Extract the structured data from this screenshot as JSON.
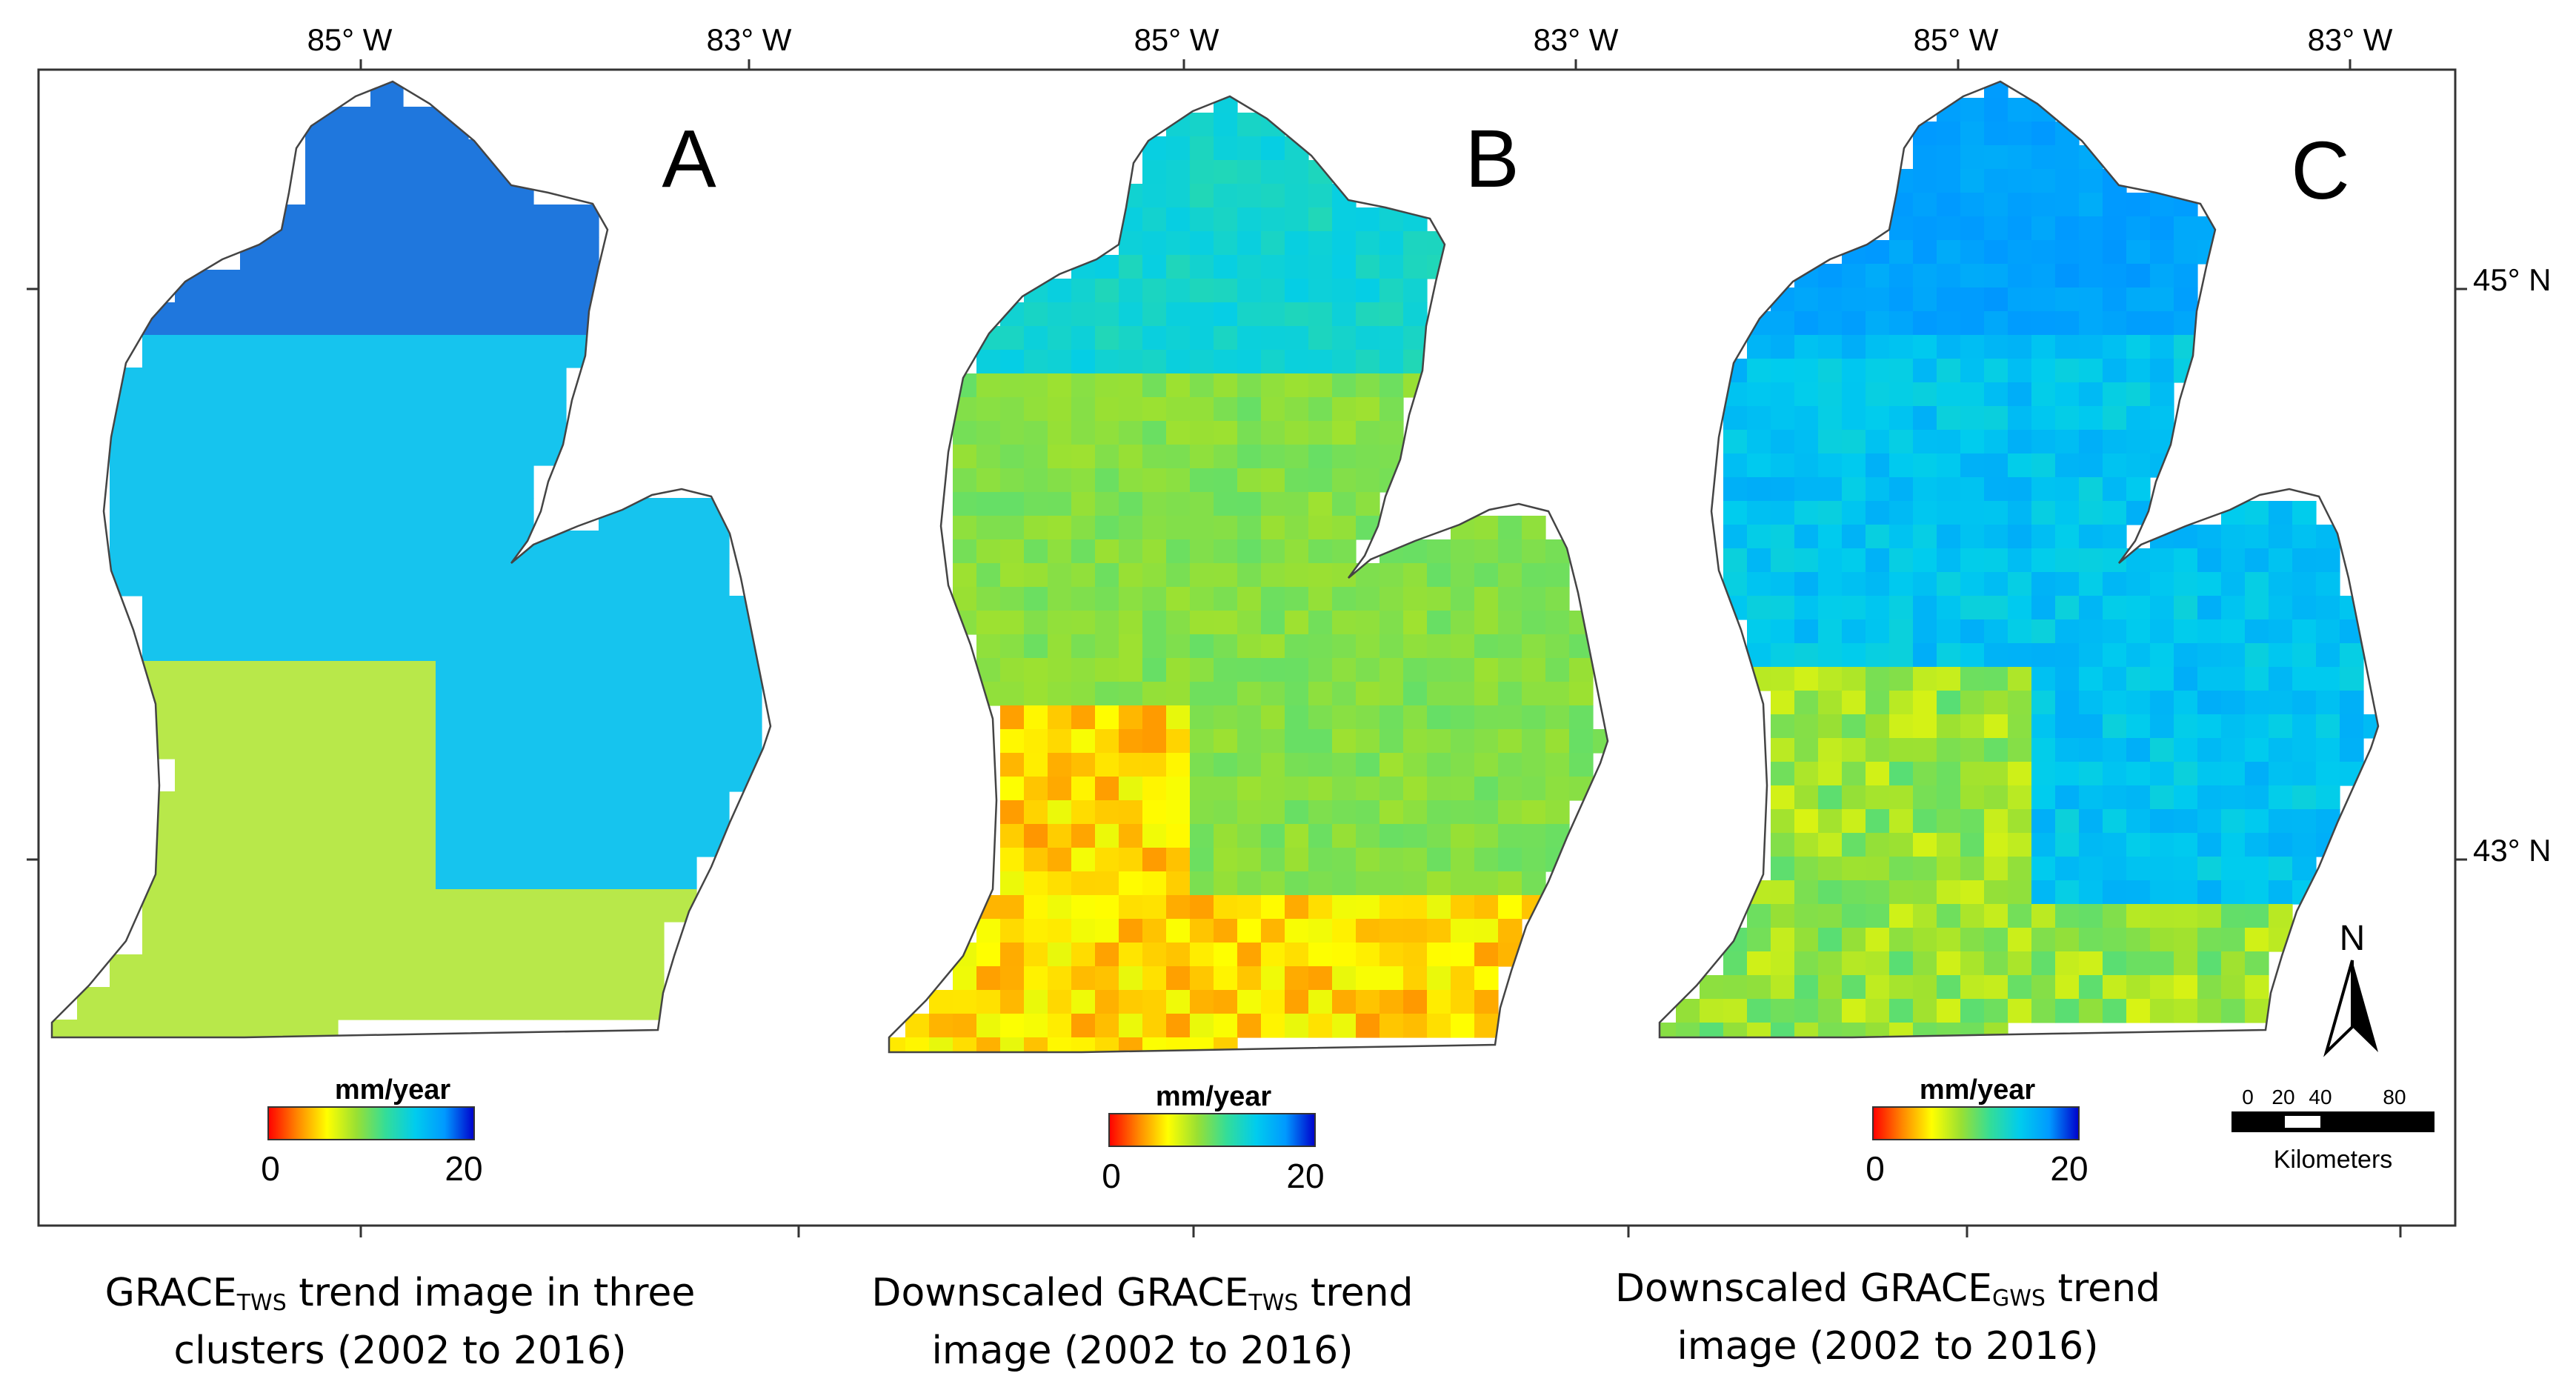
{
  "axes": {
    "top_ticks": [
      "85° W",
      "83° W",
      "85° W",
      "83° W",
      "85° W",
      "83° W"
    ],
    "right_ticks": [
      "45° N",
      "43° N"
    ]
  },
  "panels": [
    {
      "letter": "A",
      "legend_title": "mm/year",
      "legend_min": "0",
      "legend_max": "20",
      "style": "clusters"
    },
    {
      "letter": "B",
      "legend_title": "mm/year",
      "legend_min": "0",
      "legend_max": "20",
      "style": "downscaled"
    },
    {
      "letter": "C",
      "legend_title": "mm/year",
      "legend_min": "0",
      "legend_max": "20",
      "style": "gws"
    }
  ],
  "colorbar": {
    "stops": [
      "#ff0000",
      "#ff8800",
      "#ffff00",
      "#99e033",
      "#33dd99",
      "#00ccee",
      "#0099ff",
      "#0000cc"
    ],
    "range": [
      0,
      20
    ]
  },
  "cluster_colors": {
    "north": "#1f77dd",
    "central": "#16c4ee",
    "south": "#b8e84a"
  },
  "north_arrow": {
    "label": "N"
  },
  "scale_bar": {
    "ticks": [
      "0",
      "20",
      "40",
      "80"
    ],
    "unit": "Kilometers"
  },
  "captions": [
    {
      "pre": "GRACE",
      "sub": "TWS",
      "post": " trend image in three",
      "line2": "clusters (2002 to 2016)"
    },
    {
      "pre": "Downscaled GRACE",
      "sub": "TWS",
      "post": " trend",
      "line2": "image (2002 to 2016)"
    },
    {
      "pre": "Downscaled GRACE",
      "sub": "GWS",
      "post": " trend",
      "line2": "image (2002 to 2016)"
    }
  ]
}
